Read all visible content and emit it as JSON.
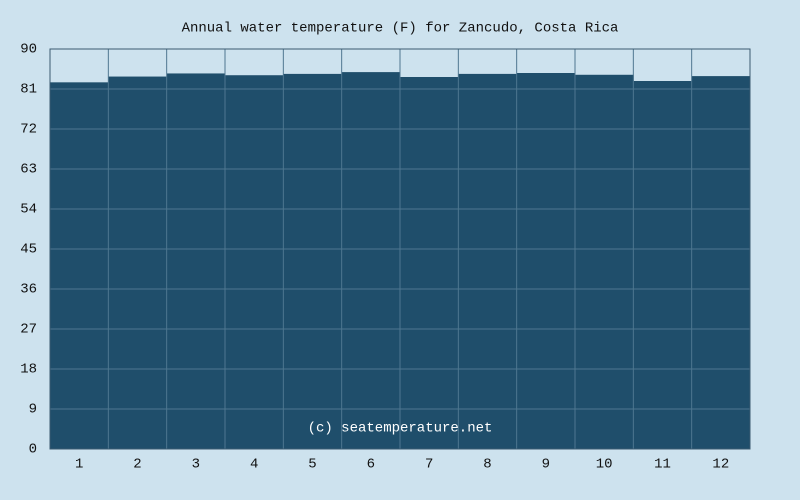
{
  "chart_data": {
    "type": "area",
    "title": "Annual water temperature (F) for Zancudo, Costa Rica",
    "watermark": "(c) seatemperature.net",
    "categories": [
      "1",
      "2",
      "3",
      "4",
      "5",
      "6",
      "7",
      "8",
      "9",
      "10",
      "11",
      "12"
    ],
    "values": [
      82.5,
      83.8,
      84.5,
      84.1,
      84.4,
      84.8,
      83.7,
      84.4,
      84.6,
      84.2,
      82.8,
      83.9
    ],
    "color": "#1f4e6b",
    "ylim": [
      0,
      90
    ],
    "yticks": [
      0,
      9,
      18,
      27,
      36,
      45,
      54,
      63,
      72,
      81,
      90
    ],
    "grid": true
  }
}
